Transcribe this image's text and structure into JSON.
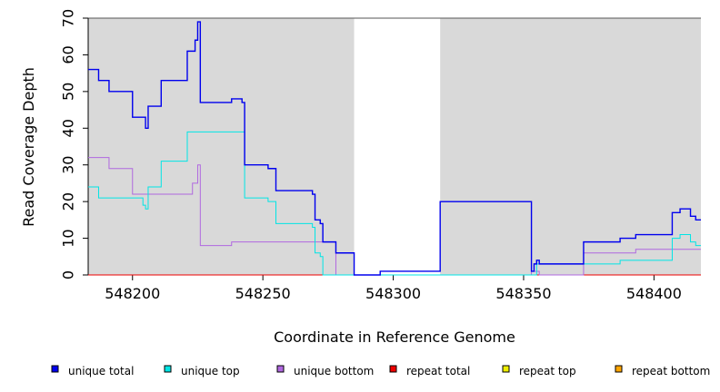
{
  "chart_data": {
    "type": "line",
    "title": "",
    "xlabel": "Coordinate in Reference Genome",
    "ylabel": "Read Coverage Depth",
    "xlim": [
      548183,
      548418
    ],
    "ylim": [
      0,
      70
    ],
    "x_ticks": [
      548200,
      548250,
      548300,
      548350,
      548400
    ],
    "x_tick_labels": [
      "548200",
      "548250",
      "548300",
      "548350",
      "548400"
    ],
    "y_ticks": [
      0,
      10,
      20,
      30,
      40,
      50,
      60,
      70
    ],
    "y_tick_labels": [
      "0",
      "10",
      "20",
      "30",
      "40",
      "50",
      "60",
      "70"
    ],
    "shaded_regions": [
      [
        548183,
        548285
      ],
      [
        548318,
        548418
      ]
    ],
    "background_color": "#d9d9d9",
    "legend_position": "bottom",
    "series": [
      {
        "name": "unique total",
        "color": "#0000ee",
        "points": [
          [
            548183,
            56
          ],
          [
            548187,
            53
          ],
          [
            548191,
            50
          ],
          [
            548200,
            43
          ],
          [
            548205,
            40
          ],
          [
            548206,
            46
          ],
          [
            548211,
            53
          ],
          [
            548221,
            61
          ],
          [
            548224,
            64
          ],
          [
            548225,
            69
          ],
          [
            548226,
            47
          ],
          [
            548238,
            48
          ],
          [
            548242,
            47
          ],
          [
            548243,
            30
          ],
          [
            548252,
            29
          ],
          [
            548255,
            23
          ],
          [
            548269,
            22
          ],
          [
            548270,
            15
          ],
          [
            548272,
            14
          ],
          [
            548273,
            9
          ],
          [
            548278,
            6
          ],
          [
            548285,
            0
          ],
          [
            548295,
            1
          ],
          [
            548318,
            20
          ],
          [
            548353,
            1
          ],
          [
            548354,
            3
          ],
          [
            548355,
            4
          ],
          [
            548356,
            3
          ],
          [
            548373,
            9
          ],
          [
            548387,
            10
          ],
          [
            548393,
            11
          ],
          [
            548407,
            17
          ],
          [
            548410,
            18
          ],
          [
            548414,
            16
          ],
          [
            548416,
            15
          ],
          [
            548418,
            15
          ]
        ]
      },
      {
        "name": "unique top",
        "color": "#00e5e5",
        "points": [
          [
            548183,
            24
          ],
          [
            548187,
            21
          ],
          [
            548204,
            19
          ],
          [
            548205,
            18
          ],
          [
            548206,
            24
          ],
          [
            548211,
            31
          ],
          [
            548221,
            39
          ],
          [
            548243,
            21
          ],
          [
            548252,
            20
          ],
          [
            548255,
            14
          ],
          [
            548269,
            13
          ],
          [
            548270,
            6
          ],
          [
            548272,
            5
          ],
          [
            548273,
            0
          ],
          [
            548355,
            3
          ],
          [
            548373,
            3
          ],
          [
            548387,
            4
          ],
          [
            548407,
            10
          ],
          [
            548410,
            11
          ],
          [
            548414,
            9
          ],
          [
            548416,
            8
          ],
          [
            548418,
            8
          ]
        ]
      },
      {
        "name": "unique bottom",
        "color": "#b068e0",
        "points": [
          [
            548183,
            32
          ],
          [
            548191,
            29
          ],
          [
            548200,
            22
          ],
          [
            548223,
            25
          ],
          [
            548225,
            30
          ],
          [
            548226,
            8
          ],
          [
            548238,
            9
          ],
          [
            548273,
            9
          ],
          [
            548278,
            0
          ],
          [
            548353,
            1
          ],
          [
            548356,
            0
          ],
          [
            548373,
            6
          ],
          [
            548393,
            7
          ],
          [
            548418,
            7
          ]
        ]
      },
      {
        "name": "repeat total",
        "color": "#ee0000",
        "points": [
          [
            548183,
            0
          ],
          [
            548418,
            0
          ]
        ]
      },
      {
        "name": "repeat top",
        "color": "#eeee00",
        "points": [
          [
            548183,
            0
          ],
          [
            548418,
            0
          ]
        ]
      },
      {
        "name": "repeat bottom",
        "color": "#ffa500",
        "points": [
          [
            548183,
            0
          ],
          [
            548418,
            0
          ]
        ]
      }
    ]
  }
}
